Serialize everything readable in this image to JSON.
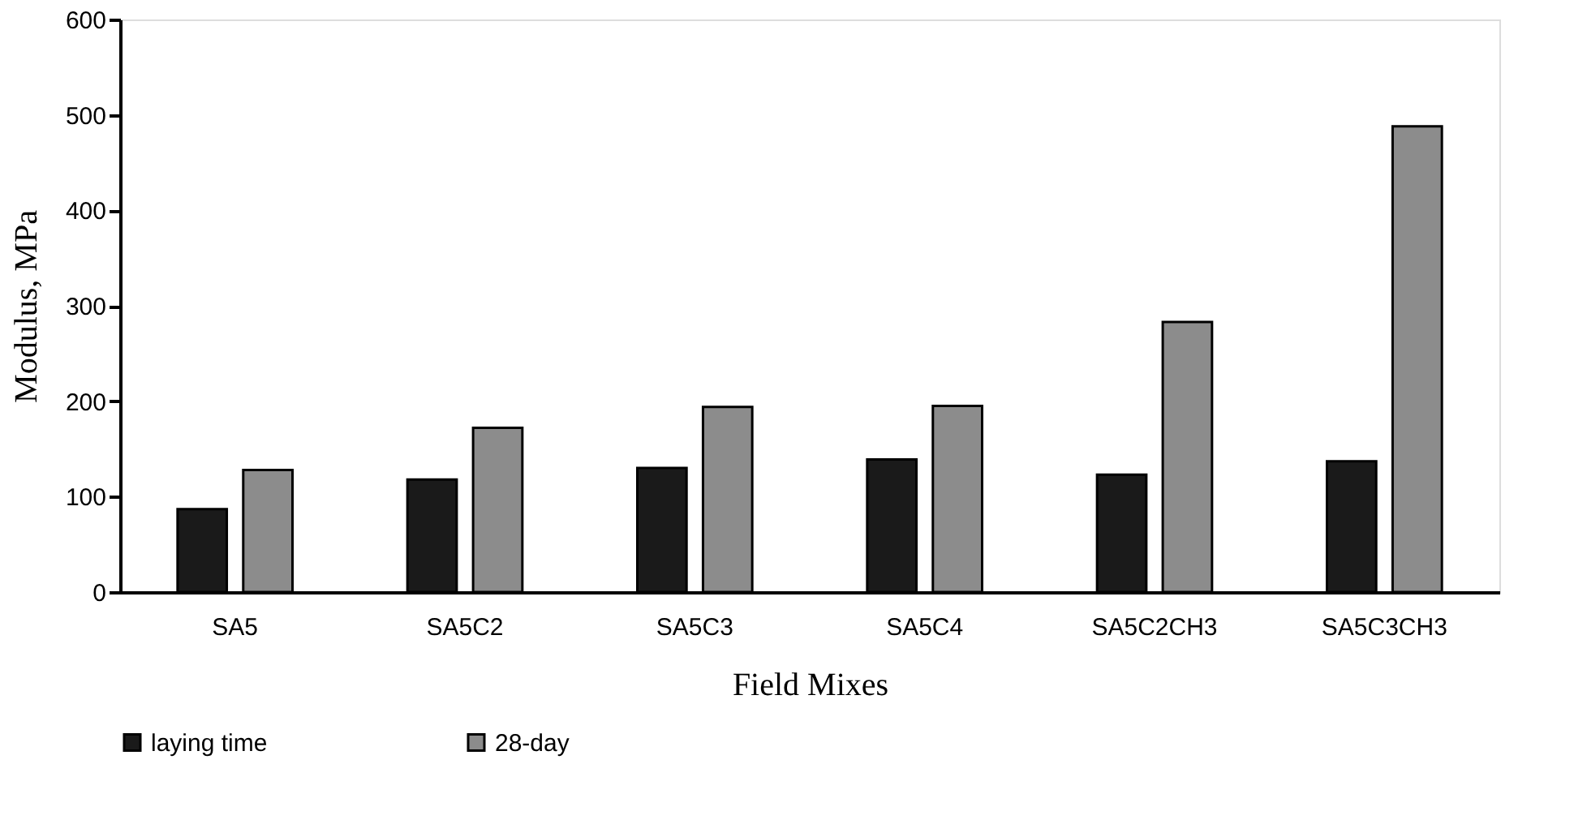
{
  "chart_data": {
    "type": "bar",
    "xlabel": "Field Mixes",
    "ylabel": "Modulus, MPa",
    "categories": [
      "SA5",
      "SA5C2",
      "SA5C3",
      "SA5C4",
      "SA5C2CH3",
      "SA5C3CH3"
    ],
    "series": [
      {
        "name": "laying time",
        "color": "#1a1a1a",
        "values": [
          87,
          118,
          130,
          139,
          123,
          137
        ]
      },
      {
        "name": "28-day",
        "color": "#8c8c8c",
        "values": [
          128,
          172,
          194,
          195,
          283,
          488
        ]
      }
    ],
    "ylim": [
      0,
      600
    ],
    "yticks": [
      0,
      100,
      200,
      300,
      400,
      500,
      600
    ],
    "grid": false,
    "legend": "bottom"
  }
}
